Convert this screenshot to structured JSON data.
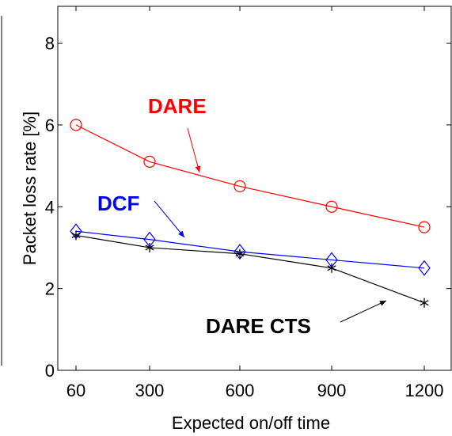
{
  "chart_data": {
    "type": "line",
    "xlabel": "Expected on/off time",
    "ylabel": "Packet loss rate [%]",
    "categories": [
      "60",
      "300",
      "600",
      "900",
      "1200"
    ],
    "ylim": [
      0,
      8.9
    ],
    "yticks": [
      0,
      2,
      4,
      6,
      8
    ],
    "grid": false,
    "series": [
      {
        "name": "DARE",
        "color": "#ff0000",
        "marker": "circle",
        "values": [
          6.0,
          5.1,
          4.5,
          4.0,
          3.5
        ]
      },
      {
        "name": "DCF",
        "color": "#0000ff",
        "marker": "diamond",
        "values": [
          3.4,
          3.2,
          2.9,
          2.7,
          2.5
        ]
      },
      {
        "name": "DARE CTS",
        "color": "#000000",
        "marker": "asterisk",
        "values": [
          3.3,
          3.0,
          2.85,
          2.5,
          1.65
        ]
      }
    ],
    "annotations": [
      {
        "text": "DARE",
        "color": "#ff0000"
      },
      {
        "text": "DCF",
        "color": "#0000ff"
      },
      {
        "text": "DARE CTS",
        "color": "#000000"
      }
    ]
  }
}
